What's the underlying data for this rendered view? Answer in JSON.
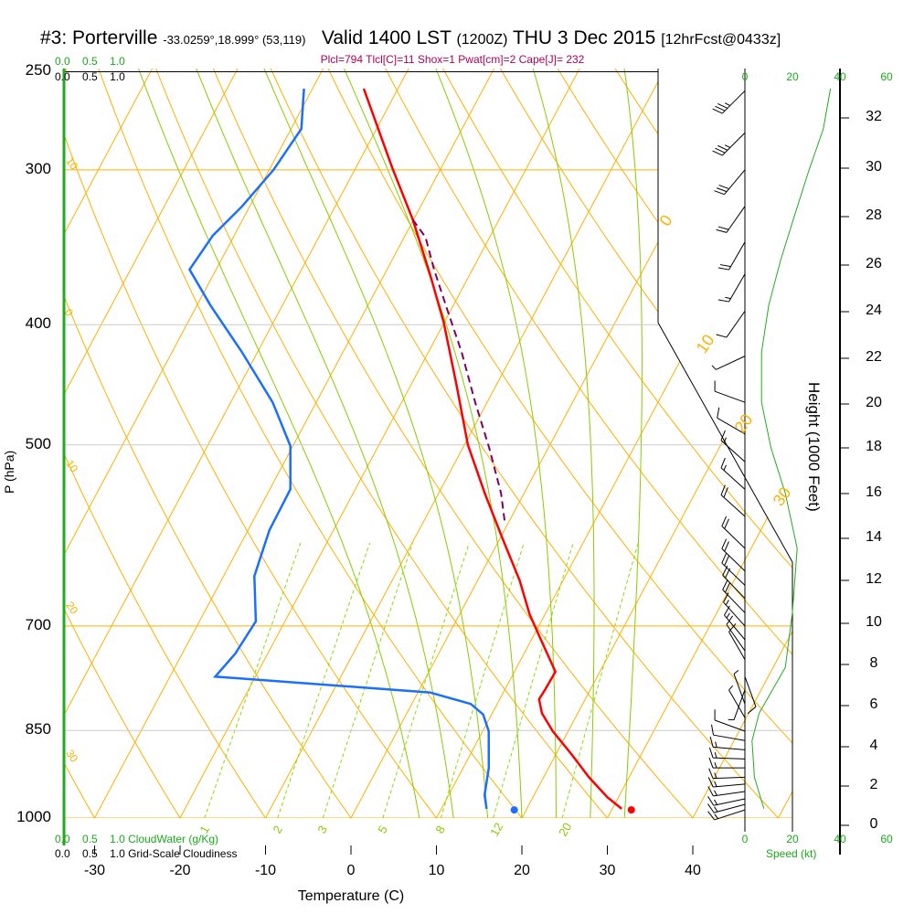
{
  "header": {
    "station": "#3: Porterville",
    "coords": "-33.0259°,18.999° (53,119)",
    "valid": "Valid 1400 LST",
    "utc": "(1200Z)",
    "date": "THU 3 Dec 2015",
    "forecast": "[12hrFcst@0433z]",
    "indices": "Plcl=794 Tlcl[C]=11 Shox=1 Pwat[cm]=2 Cape[J]= 232"
  },
  "cloud_scales": {
    "top_green": [
      "0.0",
      "0.5",
      "1.0"
    ],
    "top_black": [
      "0.0",
      "0.5",
      "1.0"
    ],
    "bottom_green": [
      "0.0",
      "0.5",
      "1.0"
    ],
    "bottom_green_label": "CloudWater (g/Kg)",
    "bottom_black": [
      "0.0",
      "0.5",
      "1.0"
    ],
    "bottom_black_label": "Grid-Scale Cloudiness"
  },
  "colors": {
    "temperature": "#ff0000",
    "dewpoint": "#1a6fff",
    "parcel": "#800060",
    "isotherm": "#ffb000",
    "moist_adiabat": "#88cc00",
    "mixing_ratio": "#88dd00",
    "wind_speed": "#22aa22",
    "indices": "#b0005a"
  },
  "chart_data": {
    "type": "line",
    "title": "#3: Porterville Valid 1400 LST THU 3 Dec 2015",
    "xlabel": "Temperature (C)",
    "ylabel": "P (hPa)",
    "y2label": "Height (1000 Feet)",
    "speed_label": "Speed (kt)",
    "pressure_ticks": [
      "250",
      "300",
      "400",
      "500",
      "700",
      "850",
      "1000"
    ],
    "pressure_values": [
      250,
      300,
      400,
      500,
      700,
      850,
      1000
    ],
    "temperature_ticks": [
      "-30",
      "-20",
      "-10",
      "0",
      "10",
      "20",
      "30",
      "40"
    ],
    "height_ticks": [
      "0",
      "2",
      "4",
      "6",
      "8",
      "10",
      "12",
      "14",
      "16",
      "18",
      "20",
      "22",
      "24",
      "26",
      "28",
      "30",
      "32"
    ],
    "speed_ticks": [
      "0",
      "20",
      "40",
      "60"
    ],
    "isotherm_labels": [
      "0",
      "10",
      "20",
      "30"
    ],
    "adiabat_labels": [
      "10",
      "0",
      "10",
      "20",
      "30"
    ],
    "mixing_ratio_labels": [
      "1",
      "2",
      "3",
      "5",
      "8",
      "12",
      "20"
    ],
    "mixing_ratio_values": [
      1,
      2,
      3,
      5,
      8,
      12,
      20
    ],
    "temperature": [
      [
        258,
        -44.0
      ],
      [
        299,
        -35.7
      ],
      [
        329,
        -30.1
      ],
      [
        364,
        -24.7
      ],
      [
        398,
        -20.1
      ],
      [
        447,
        -14.7
      ],
      [
        500,
        -9.6
      ],
      [
        547,
        -4.6
      ],
      [
        596,
        0.4
      ],
      [
        643,
        4.9
      ],
      [
        685,
        8.2
      ],
      [
        718,
        11.1
      ],
      [
        762,
        14.8
      ],
      [
        788,
        14.7
      ],
      [
        802,
        14.6
      ],
      [
        823,
        15.8
      ],
      [
        851,
        18.2
      ],
      [
        888,
        21.8
      ],
      [
        927,
        25.3
      ],
      [
        962,
        28.7
      ],
      [
        983,
        31.1
      ]
    ],
    "surface_temperature": [
      985,
      32.3
    ],
    "dewpoint": [
      [
        258,
        -51.0
      ],
      [
        278,
        -48.8
      ],
      [
        300,
        -49.5
      ],
      [
        321,
        -50.9
      ],
      [
        339,
        -52.5
      ],
      [
        361,
        -53.1
      ],
      [
        386,
        -48.4
      ],
      [
        421,
        -41.8
      ],
      [
        462,
        -35.1
      ],
      [
        501,
        -30.3
      ],
      [
        543,
        -27.6
      ],
      [
        586,
        -27.5
      ],
      [
        638,
        -26.4
      ],
      [
        694,
        -23.4
      ],
      [
        737,
        -23.8
      ],
      [
        769,
        -24.7
      ],
      [
        792,
        1.4
      ],
      [
        809,
        6.9
      ],
      [
        825,
        9.0
      ],
      [
        851,
        10.7
      ],
      [
        911,
        13.0
      ],
      [
        958,
        14.2
      ],
      [
        983,
        15.3
      ]
    ],
    "surface_dewpoint": [
      985,
      18.6
    ],
    "parcel": [
      [
        329,
        -30.1
      ],
      [
        340,
        -27.5
      ],
      [
        361,
        -24.5
      ],
      [
        390,
        -20.3
      ],
      [
        421,
        -16.1
      ],
      [
        462,
        -11.4
      ],
      [
        503,
        -6.9
      ],
      [
        547,
        -2.7
      ],
      [
        578,
        -0.4
      ]
    ],
    "wind_speed_profile": [
      [
        258,
        36
      ],
      [
        278,
        33
      ],
      [
        300,
        27
      ],
      [
        326,
        21
      ],
      [
        355,
        15
      ],
      [
        386,
        10
      ],
      [
        421,
        7
      ],
      [
        462,
        7
      ],
      [
        503,
        11
      ],
      [
        547,
        17
      ],
      [
        606,
        22
      ],
      [
        682,
        20
      ],
      [
        756,
        17
      ],
      [
        823,
        6
      ],
      [
        866,
        3
      ],
      [
        927,
        4
      ],
      [
        983,
        8
      ]
    ],
    "wind_barbs": [
      [
        259,
        225,
        35
      ],
      [
        280,
        225,
        33
      ],
      [
        300,
        220,
        28
      ],
      [
        321,
        215,
        22
      ],
      [
        343,
        210,
        18
      ],
      [
        364,
        210,
        14
      ],
      [
        390,
        215,
        10
      ],
      [
        424,
        245,
        7
      ],
      [
        462,
        290,
        8
      ],
      [
        490,
        300,
        10
      ],
      [
        516,
        312,
        15
      ],
      [
        543,
        312,
        17
      ],
      [
        571,
        312,
        20
      ],
      [
        606,
        314,
        20
      ],
      [
        632,
        314,
        20
      ],
      [
        649,
        314,
        20
      ],
      [
        665,
        316,
        20
      ],
      [
        683,
        316,
        18
      ],
      [
        700,
        318,
        17
      ],
      [
        718,
        320,
        15
      ],
      [
        733,
        325,
        12
      ],
      [
        745,
        330,
        10
      ],
      [
        769,
        160,
        8
      ],
      [
        788,
        200,
        6
      ],
      [
        809,
        340,
        5
      ],
      [
        830,
        330,
        5
      ],
      [
        851,
        290,
        10
      ],
      [
        866,
        280,
        12
      ],
      [
        881,
        275,
        13
      ],
      [
        896,
        272,
        14
      ],
      [
        911,
        270,
        14
      ],
      [
        927,
        268,
        14
      ],
      [
        939,
        265,
        14
      ],
      [
        952,
        262,
        14
      ],
      [
        965,
        258,
        14
      ],
      [
        975,
        255,
        15
      ],
      [
        985,
        252,
        15
      ]
    ]
  }
}
